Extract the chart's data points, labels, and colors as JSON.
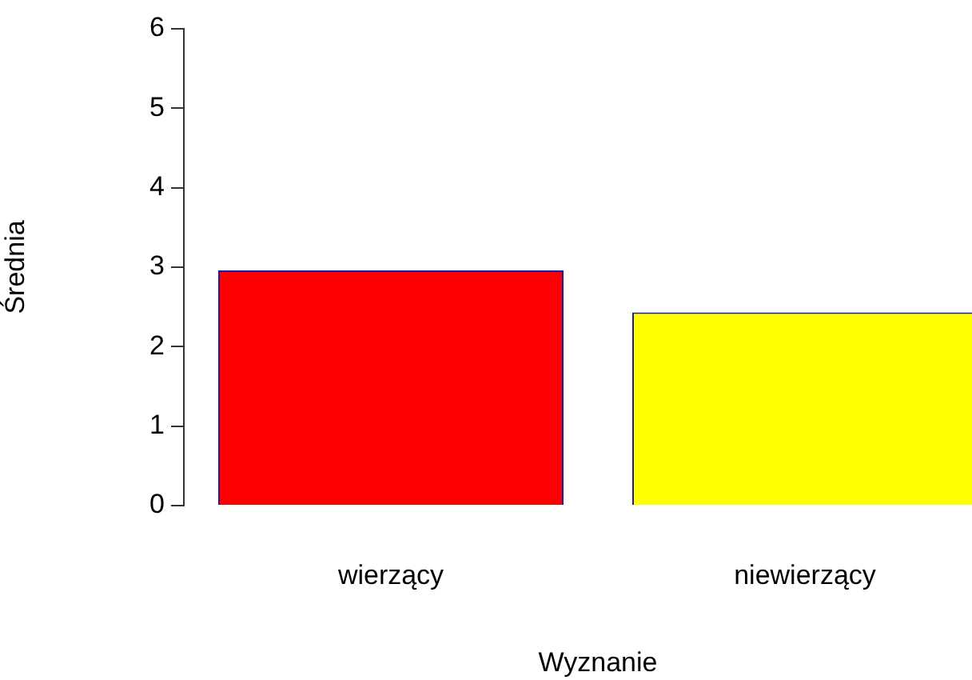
{
  "chart_data": {
    "type": "bar",
    "xlabel": "Wyznanie",
    "ylabel": "Średnia",
    "categories": [
      "wierzący",
      "niewierzący"
    ],
    "values": [
      2.96,
      2.43
    ],
    "colors": [
      "#ff0000",
      "#ffff00"
    ],
    "ylim": [
      0,
      6
    ],
    "yticks": [
      0,
      1,
      2,
      3,
      4,
      5,
      6
    ],
    "grid": false,
    "legend": false
  }
}
